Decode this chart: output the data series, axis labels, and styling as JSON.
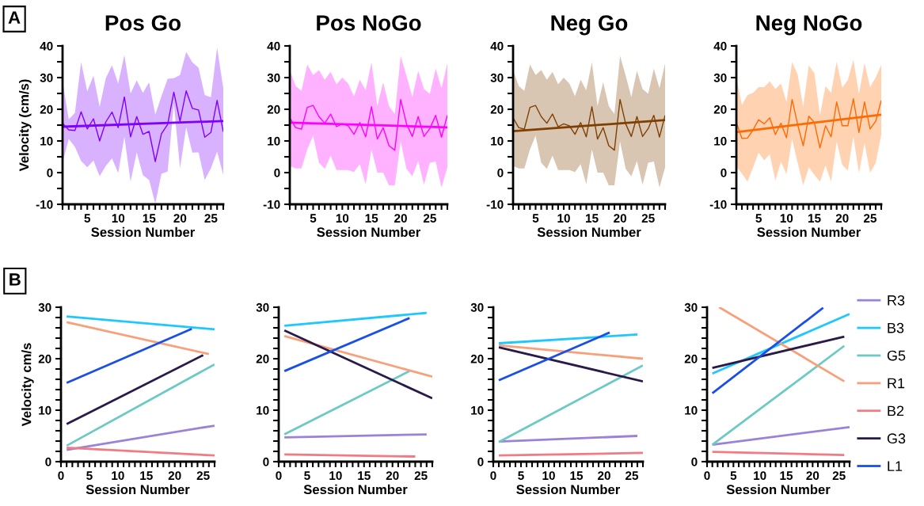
{
  "chart_data": [
    {
      "type": "line",
      "title": "Pos Go",
      "xlabel": "Session Number",
      "ylabel": "Velocity (cm/s)",
      "annotations": [
        "A"
      ],
      "x": [
        1,
        2,
        3,
        4,
        5,
        6,
        7,
        8,
        9,
        10,
        11,
        12,
        13,
        14,
        15,
        16,
        17,
        18,
        19,
        20,
        21,
        22,
        23,
        24,
        25,
        26,
        27
      ],
      "series": [
        {
          "color": "#8000ff",
          "values": [
            15.6,
            13.5,
            13.3,
            19.2,
            13.8,
            17.0,
            10.0,
            16.0,
            19.1,
            14.2,
            23.9,
            11.3,
            17.7,
            12.1,
            13.0,
            3.5,
            12.3,
            15.2,
            25.4,
            16.2,
            25.8,
            20.3,
            19.8,
            11.2,
            12.7,
            22.8,
            12.9
          ],
          "lower": [
            3.1,
            10.6,
            8.1,
            3.7,
            1.7,
            3.8,
            -1.1,
            2.1,
            4.5,
            -0.1,
            11.3,
            -2.8,
            6.4,
            -0.8,
            -2.3,
            -9.8,
            -0.4,
            0.4,
            21.8,
            1.4,
            14.3,
            6.3,
            6.4,
            -2.3,
            1.4,
            6.6,
            -0.7
          ],
          "upper": [
            28.9,
            16.8,
            18.9,
            34.9,
            25.6,
            30.6,
            20.8,
            29.8,
            33.9,
            28.1,
            37.1,
            25.0,
            29.1,
            25.2,
            28.5,
            18.3,
            24.1,
            29.6,
            29.8,
            30.8,
            38.1,
            34.8,
            33.1,
            24.5,
            23.8,
            39.5,
            26.6
          ]
        },
        {
          "color": "#8000ff",
          "x": [
            1,
            27
          ],
          "values": [
            14.5,
            16.3
          ]
        }
      ],
      "xlim": [
        1,
        27
      ],
      "xticks": [
        {
          "value": 1,
          "label": null
        },
        {
          "value": 2,
          "label": null
        },
        {
          "value": 3,
          "label": null
        },
        {
          "value": 4,
          "label": null
        },
        5,
        {
          "value": 6,
          "label": null
        },
        {
          "value": 7,
          "label": null
        },
        {
          "value": 8,
          "label": null
        },
        {
          "value": 9,
          "label": null
        },
        10,
        {
          "value": 11,
          "label": null
        },
        {
          "value": 12,
          "label": null
        },
        {
          "value": 13,
          "label": null
        },
        {
          "value": 14,
          "label": null
        },
        15,
        {
          "value": 16,
          "label": null
        },
        {
          "value": 17,
          "label": null
        },
        {
          "value": 18,
          "label": null
        },
        {
          "value": 19,
          "label": null
        },
        20,
        {
          "value": 21,
          "label": null
        },
        {
          "value": 22,
          "label": null
        },
        {
          "value": 23,
          "label": null
        },
        {
          "value": 24,
          "label": null
        },
        25,
        {
          "value": 26,
          "label": null
        },
        {
          "value": 27,
          "label": null
        }
      ],
      "ylim": [
        -10,
        40
      ],
      "yticks": [
        -10,
        {
          "value": -5,
          "label": null
        },
        0,
        {
          "value": 5,
          "label": null
        },
        10,
        {
          "value": 15,
          "label": null
        },
        20,
        {
          "value": 25,
          "label": null
        },
        30,
        {
          "value": 35,
          "label": null
        },
        40
      ]
    },
    {
      "type": "line",
      "title": "Pos NoGo",
      "xlabel": "Session Number",
      "x": [
        1,
        2,
        3,
        4,
        5,
        6,
        7,
        8,
        9,
        10,
        11,
        12,
        13,
        14,
        15,
        16,
        17,
        18,
        19,
        20,
        21,
        22,
        23,
        24,
        25,
        26,
        27,
        28
      ],
      "series": [
        {
          "color": "#ff00ff",
          "values": [
            17.3,
            14.2,
            13.7,
            20.6,
            21.2,
            17.7,
            15.6,
            18.5,
            14.5,
            15.4,
            14.8,
            12.1,
            15.8,
            11.3,
            20.8,
            10.6,
            14.2,
            8.5,
            7.1,
            23.1,
            15.4,
            11.4,
            17.7,
            11.4,
            13.9,
            18.1,
            11.2,
            18.1
          ],
          "lower": [
            2.1,
            1.3,
            1.3,
            7.3,
            11.7,
            3.1,
            1.2,
            5.4,
            0.8,
            0.8,
            0.8,
            0.2,
            2.7,
            -3.6,
            7.3,
            0.0,
            0.0,
            -4.0,
            -4.0,
            9.8,
            1.2,
            -1.1,
            3.7,
            -3.8,
            3.1,
            3.5,
            -4.7,
            1.6
          ],
          "upper": [
            32.3,
            27.4,
            25.8,
            34.1,
            30.8,
            32.4,
            29.3,
            31.8,
            27.9,
            30.0,
            28.1,
            24.1,
            29.3,
            26.0,
            34.8,
            21.0,
            28.5,
            21.0,
            18.5,
            36.8,
            30.6,
            23.9,
            32.1,
            26.4,
            24.9,
            32.8,
            26.6,
            34.5
          ]
        },
        {
          "color": "#ff00ff",
          "x": [
            1,
            28
          ],
          "values": [
            15.8,
            14.3
          ]
        }
      ],
      "xlim": [
        1,
        28
      ],
      "xticks": [
        {
          "value": 1,
          "label": null
        },
        {
          "value": 2,
          "label": null
        },
        {
          "value": 3,
          "label": null
        },
        {
          "value": 4,
          "label": null
        },
        5,
        {
          "value": 6,
          "label": null
        },
        {
          "value": 7,
          "label": null
        },
        {
          "value": 8,
          "label": null
        },
        {
          "value": 9,
          "label": null
        },
        10,
        {
          "value": 11,
          "label": null
        },
        {
          "value": 12,
          "label": null
        },
        {
          "value": 13,
          "label": null
        },
        {
          "value": 14,
          "label": null
        },
        15,
        {
          "value": 16,
          "label": null
        },
        {
          "value": 17,
          "label": null
        },
        {
          "value": 18,
          "label": null
        },
        {
          "value": 19,
          "label": null
        },
        20,
        {
          "value": 21,
          "label": null
        },
        {
          "value": 22,
          "label": null
        },
        {
          "value": 23,
          "label": null
        },
        {
          "value": 24,
          "label": null
        },
        25,
        {
          "value": 26,
          "label": null
        },
        {
          "value": 27,
          "label": null
        },
        {
          "value": 28,
          "label": null
        }
      ],
      "ylim": [
        -10,
        40
      ],
      "yticks": [
        -10,
        {
          "value": -5,
          "label": null
        },
        0,
        {
          "value": 5,
          "label": null
        },
        10,
        {
          "value": 15,
          "label": null
        },
        20,
        {
          "value": 25,
          "label": null
        },
        30,
        {
          "value": 35,
          "label": null
        },
        40
      ]
    },
    {
      "type": "line",
      "title": "Neg Go",
      "xlabel": "Session Number",
      "x": [
        1,
        2,
        3,
        4,
        5,
        6,
        7,
        8,
        9,
        10,
        11,
        12,
        13,
        14,
        15,
        16,
        17,
        18,
        19,
        20,
        21,
        22,
        23,
        24,
        25,
        26,
        27,
        28
      ],
      "series": [
        {
          "color": "#7f3f00",
          "values": [
            17.3,
            14.2,
            13.7,
            20.6,
            21.2,
            17.7,
            15.6,
            18.5,
            14.5,
            15.4,
            14.8,
            12.1,
            15.8,
            11.3,
            20.8,
            10.6,
            14.2,
            8.5,
            7.1,
            23.1,
            15.4,
            11.4,
            17.7,
            11.4,
            13.9,
            18.1,
            11.2,
            18.1
          ],
          "lower": [
            2.1,
            1.3,
            1.3,
            7.3,
            11.7,
            3.1,
            1.2,
            5.4,
            0.8,
            0.8,
            0.8,
            0.2,
            2.7,
            -3.6,
            7.3,
            0.0,
            0.0,
            -4.0,
            -4.0,
            9.8,
            1.2,
            -1.1,
            3.7,
            -3.8,
            3.1,
            3.5,
            -4.7,
            1.6
          ],
          "upper": [
            32.3,
            27.4,
            25.8,
            34.1,
            30.8,
            32.4,
            29.3,
            31.8,
            27.9,
            30.0,
            28.1,
            24.1,
            29.3,
            26.0,
            34.8,
            21.0,
            28.5,
            21.0,
            18.5,
            36.8,
            30.6,
            23.9,
            32.1,
            26.4,
            24.9,
            32.8,
            26.6,
            34.5
          ]
        },
        {
          "color": "#7f3f00",
          "x": [
            1,
            28
          ],
          "values": [
            13.1,
            16.6
          ]
        }
      ],
      "xlim": [
        1,
        28
      ],
      "xticks": [
        {
          "value": 1,
          "label": null
        },
        {
          "value": 2,
          "label": null
        },
        {
          "value": 3,
          "label": null
        },
        {
          "value": 4,
          "label": null
        },
        5,
        {
          "value": 6,
          "label": null
        },
        {
          "value": 7,
          "label": null
        },
        {
          "value": 8,
          "label": null
        },
        {
          "value": 9,
          "label": null
        },
        10,
        {
          "value": 11,
          "label": null
        },
        {
          "value": 12,
          "label": null
        },
        {
          "value": 13,
          "label": null
        },
        {
          "value": 14,
          "label": null
        },
        15,
        {
          "value": 16,
          "label": null
        },
        {
          "value": 17,
          "label": null
        },
        {
          "value": 18,
          "label": null
        },
        {
          "value": 19,
          "label": null
        },
        20,
        {
          "value": 21,
          "label": null
        },
        {
          "value": 22,
          "label": null
        },
        {
          "value": 23,
          "label": null
        },
        {
          "value": 24,
          "label": null
        },
        25,
        {
          "value": 26,
          "label": null
        },
        {
          "value": 27,
          "label": null
        },
        {
          "value": 28,
          "label": null
        }
      ],
      "ylim": [
        -10,
        40
      ],
      "yticks": [
        -10,
        {
          "value": -5,
          "label": null
        },
        0,
        {
          "value": 5,
          "label": null
        },
        10,
        {
          "value": 15,
          "label": null
        },
        20,
        {
          "value": 25,
          "label": null
        },
        30,
        {
          "value": 35,
          "label": null
        },
        40
      ]
    },
    {
      "type": "line",
      "title": "Neg NoGo",
      "xlabel": "Session Number",
      "x": [
        1,
        2,
        3,
        4,
        5,
        6,
        7,
        8,
        9,
        10,
        11,
        12,
        13,
        14,
        15,
        16,
        17,
        18,
        19,
        20,
        21,
        22,
        23,
        24,
        25,
        26,
        27
      ],
      "series": [
        {
          "color": "#ff6a00",
          "values": [
            15.8,
            10.8,
            10.9,
            13.5,
            16.7,
            15.4,
            17.3,
            12.0,
            15.6,
            11.0,
            23.1,
            15.2,
            8.5,
            17.8,
            15.8,
            7.8,
            14.8,
            11.3,
            22.3,
            14.8,
            14.8,
            23.3,
            12.7,
            22.3,
            13.8,
            16.2,
            22.8
          ],
          "lower": [
            2.0,
            -0.3,
            -2.8,
            1.6,
            6.3,
            3.9,
            5.8,
            -2.5,
            3.5,
            -0.5,
            10.6,
            3.1,
            -4.0,
            1.7,
            -0.7,
            -2.9,
            2.3,
            -2.8,
            9.8,
            2.5,
            0.6,
            11.3,
            -0.1,
            9.3,
            0.0,
            3.0,
            12.0
          ],
          "upper": [
            29.9,
            21.4,
            24.5,
            25.2,
            27.0,
            27.0,
            28.8,
            26.4,
            28.1,
            22.3,
            34.9,
            31.0,
            20.8,
            33.9,
            31.4,
            18.1,
            27.3,
            25.2,
            35.0,
            26.8,
            29.2,
            35.6,
            24.8,
            34.6,
            27.0,
            30.0,
            34.0
          ]
        },
        {
          "color": "#ff6a00",
          "x": [
            1,
            27
          ],
          "values": [
            12.8,
            18.3
          ]
        }
      ],
      "xlim": [
        1,
        27
      ],
      "xticks": [
        {
          "value": 1,
          "label": null
        },
        {
          "value": 2,
          "label": null
        },
        {
          "value": 3,
          "label": null
        },
        {
          "value": 4,
          "label": null
        },
        5,
        {
          "value": 6,
          "label": null
        },
        {
          "value": 7,
          "label": null
        },
        {
          "value": 8,
          "label": null
        },
        {
          "value": 9,
          "label": null
        },
        10,
        {
          "value": 11,
          "label": null
        },
        {
          "value": 12,
          "label": null
        },
        {
          "value": 13,
          "label": null
        },
        {
          "value": 14,
          "label": null
        },
        15,
        {
          "value": 16,
          "label": null
        },
        {
          "value": 17,
          "label": null
        },
        {
          "value": 18,
          "label": null
        },
        {
          "value": 19,
          "label": null
        },
        20,
        {
          "value": 21,
          "label": null
        },
        {
          "value": 22,
          "label": null
        },
        {
          "value": 23,
          "label": null
        },
        {
          "value": 24,
          "label": null
        },
        25,
        {
          "value": 26,
          "label": null
        },
        {
          "value": 27,
          "label": null
        }
      ],
      "ylim": [
        -10,
        40
      ],
      "yticks": [
        -10,
        {
          "value": -5,
          "label": null
        },
        0,
        {
          "value": 5,
          "label": null
        },
        10,
        {
          "value": 15,
          "label": null
        },
        20,
        {
          "value": 25,
          "label": null
        },
        30,
        {
          "value": 35,
          "label": null
        },
        40
      ]
    },
    {
      "type": "line",
      "xlabel": "Session Number",
      "ylabel": "Velocity cm/s",
      "annotations": [
        "B"
      ],
      "series": [
        {
          "color": "#9b82d8",
          "x": [
            1,
            27
          ],
          "values": [
            2.3,
            7.0
          ]
        },
        {
          "color": "#1ec8ff",
          "x": [
            1,
            27
          ],
          "values": [
            28.2,
            25.7
          ]
        },
        {
          "color": "#6cc9c4",
          "x": [
            1,
            27
          ],
          "values": [
            3.1,
            18.9
          ]
        },
        {
          "color": "#f8a07a",
          "x": [
            1,
            26
          ],
          "values": [
            27.1,
            20.9
          ]
        },
        {
          "color": "#f27a82",
          "x": [
            1,
            27
          ],
          "values": [
            2.7,
            1.2
          ]
        },
        {
          "color": "#2a1a4a",
          "x": [
            1,
            25
          ],
          "values": [
            7.3,
            20.7
          ]
        },
        {
          "color": "#1a4fe6",
          "x": [
            1,
            23
          ],
          "values": [
            15.3,
            25.8
          ]
        }
      ],
      "xlim": [
        0,
        27
      ],
      "xticks": [
        0,
        {
          "value": 1,
          "label": null
        },
        {
          "value": 2,
          "label": null
        },
        {
          "value": 3,
          "label": null
        },
        {
          "value": 4,
          "label": null
        },
        5,
        {
          "value": 6,
          "label": null
        },
        {
          "value": 7,
          "label": null
        },
        {
          "value": 8,
          "label": null
        },
        {
          "value": 9,
          "label": null
        },
        10,
        {
          "value": 11,
          "label": null
        },
        {
          "value": 12,
          "label": null
        },
        {
          "value": 13,
          "label": null
        },
        {
          "value": 14,
          "label": null
        },
        15,
        {
          "value": 16,
          "label": null
        },
        {
          "value": 17,
          "label": null
        },
        {
          "value": 18,
          "label": null
        },
        {
          "value": 19,
          "label": null
        },
        20,
        {
          "value": 21,
          "label": null
        },
        {
          "value": 22,
          "label": null
        },
        {
          "value": 23,
          "label": null
        },
        {
          "value": 24,
          "label": null
        },
        25,
        {
          "value": 26,
          "label": null
        },
        {
          "value": 27,
          "label": null
        }
      ],
      "ylim": [
        0,
        30
      ],
      "yticks": [
        0,
        {
          "value": 2,
          "label": null
        },
        {
          "value": 4,
          "label": null
        },
        {
          "value": 6,
          "label": null
        },
        {
          "value": 8,
          "label": null
        },
        10,
        {
          "value": 12,
          "label": null
        },
        {
          "value": 14,
          "label": null
        },
        {
          "value": 16,
          "label": null
        },
        {
          "value": 18,
          "label": null
        },
        20,
        {
          "value": 22,
          "label": null
        },
        {
          "value": 24,
          "label": null
        },
        {
          "value": 26,
          "label": null
        },
        {
          "value": 28,
          "label": null
        },
        30
      ]
    },
    {
      "type": "line",
      "xlabel": "Session Number",
      "series": [
        {
          "color": "#9b82d8",
          "x": [
            1,
            26
          ],
          "values": [
            4.7,
            5.3
          ]
        },
        {
          "color": "#1ec8ff",
          "x": [
            1,
            26
          ],
          "values": [
            26.4,
            28.9
          ]
        },
        {
          "color": "#6cc9c4",
          "x": [
            1,
            23
          ],
          "values": [
            5.3,
            17.6
          ]
        },
        {
          "color": "#f8a07a",
          "x": [
            1,
            27
          ],
          "values": [
            24.4,
            16.5
          ]
        },
        {
          "color": "#f27a82",
          "x": [
            1,
            24
          ],
          "values": [
            1.4,
            1.0
          ]
        },
        {
          "color": "#2a1a4a",
          "x": [
            1,
            27
          ],
          "values": [
            25.5,
            12.3
          ]
        },
        {
          "color": "#1a4fe6",
          "x": [
            1,
            23
          ],
          "values": [
            17.6,
            27.9
          ]
        }
      ],
      "xlim": [
        0,
        27
      ],
      "xticks": [
        0,
        {
          "value": 1,
          "label": null
        },
        {
          "value": 2,
          "label": null
        },
        {
          "value": 3,
          "label": null
        },
        {
          "value": 4,
          "label": null
        },
        5,
        {
          "value": 6,
          "label": null
        },
        {
          "value": 7,
          "label": null
        },
        {
          "value": 8,
          "label": null
        },
        {
          "value": 9,
          "label": null
        },
        10,
        {
          "value": 11,
          "label": null
        },
        {
          "value": 12,
          "label": null
        },
        {
          "value": 13,
          "label": null
        },
        {
          "value": 14,
          "label": null
        },
        15,
        {
          "value": 16,
          "label": null
        },
        {
          "value": 17,
          "label": null
        },
        {
          "value": 18,
          "label": null
        },
        {
          "value": 19,
          "label": null
        },
        20,
        {
          "value": 21,
          "label": null
        },
        {
          "value": 22,
          "label": null
        },
        {
          "value": 23,
          "label": null
        },
        {
          "value": 24,
          "label": null
        },
        25,
        {
          "value": 26,
          "label": null
        },
        {
          "value": 27,
          "label": null
        }
      ],
      "ylim": [
        0,
        30
      ],
      "yticks": [
        0,
        {
          "value": 2,
          "label": null
        },
        {
          "value": 4,
          "label": null
        },
        {
          "value": 6,
          "label": null
        },
        {
          "value": 8,
          "label": null
        },
        10,
        {
          "value": 12,
          "label": null
        },
        {
          "value": 14,
          "label": null
        },
        {
          "value": 16,
          "label": null
        },
        {
          "value": 18,
          "label": null
        },
        20,
        {
          "value": 22,
          "label": null
        },
        {
          "value": 24,
          "label": null
        },
        {
          "value": 26,
          "label": null
        },
        {
          "value": 28,
          "label": null
        },
        30
      ]
    },
    {
      "type": "line",
      "xlabel": "Session Number",
      "series": [
        {
          "color": "#9b82d8",
          "x": [
            1,
            26
          ],
          "values": [
            3.9,
            5.0
          ]
        },
        {
          "color": "#1ec8ff",
          "x": [
            1,
            26
          ],
          "values": [
            23.0,
            24.7
          ]
        },
        {
          "color": "#6cc9c4",
          "x": [
            1,
            27
          ],
          "values": [
            3.8,
            18.7
          ]
        },
        {
          "color": "#f8a07a",
          "x": [
            1,
            27
          ],
          "values": [
            22.6,
            20.0
          ]
        },
        {
          "color": "#f27a82",
          "x": [
            1,
            27
          ],
          "values": [
            1.2,
            1.7
          ]
        },
        {
          "color": "#2a1a4a",
          "x": [
            1,
            27
          ],
          "values": [
            22.2,
            15.6
          ]
        },
        {
          "color": "#1a4fe6",
          "x": [
            1,
            21
          ],
          "values": [
            15.8,
            25.1
          ]
        }
      ],
      "xlim": [
        0,
        27
      ],
      "xticks": [
        0,
        {
          "value": 1,
          "label": null
        },
        {
          "value": 2,
          "label": null
        },
        {
          "value": 3,
          "label": null
        },
        {
          "value": 4,
          "label": null
        },
        5,
        {
          "value": 6,
          "label": null
        },
        {
          "value": 7,
          "label": null
        },
        {
          "value": 8,
          "label": null
        },
        {
          "value": 9,
          "label": null
        },
        10,
        {
          "value": 11,
          "label": null
        },
        {
          "value": 12,
          "label": null
        },
        {
          "value": 13,
          "label": null
        },
        {
          "value": 14,
          "label": null
        },
        15,
        {
          "value": 16,
          "label": null
        },
        {
          "value": 17,
          "label": null
        },
        {
          "value": 18,
          "label": null
        },
        {
          "value": 19,
          "label": null
        },
        20,
        {
          "value": 21,
          "label": null
        },
        {
          "value": 22,
          "label": null
        },
        {
          "value": 23,
          "label": null
        },
        {
          "value": 24,
          "label": null
        },
        25,
        {
          "value": 26,
          "label": null
        },
        {
          "value": 27,
          "label": null
        }
      ],
      "ylim": [
        0,
        30
      ],
      "yticks": [
        0,
        {
          "value": 2,
          "label": null
        },
        {
          "value": 4,
          "label": null
        },
        {
          "value": 6,
          "label": null
        },
        {
          "value": 8,
          "label": null
        },
        10,
        {
          "value": 12,
          "label": null
        },
        {
          "value": 14,
          "label": null
        },
        {
          "value": 16,
          "label": null
        },
        {
          "value": 18,
          "label": null
        },
        20,
        {
          "value": 22,
          "label": null
        },
        {
          "value": 24,
          "label": null
        },
        {
          "value": 26,
          "label": null
        },
        {
          "value": 28,
          "label": null
        },
        30
      ]
    },
    {
      "type": "line",
      "xlabel": "Session Number",
      "legend": "right",
      "series": [
        {
          "name": "R3",
          "color": "#9b82d8",
          "x": [
            1,
            27
          ],
          "values": [
            3.3,
            6.7
          ]
        },
        {
          "name": "B3",
          "color": "#1ec8ff",
          "x": [
            1,
            27
          ],
          "values": [
            17.1,
            28.7
          ]
        },
        {
          "name": "G5",
          "color": "#6cc9c4",
          "x": [
            1,
            26
          ],
          "values": [
            3.3,
            22.5
          ]
        },
        {
          "name": "R1",
          "color": "#f8a07a",
          "x": [
            2.3,
            26
          ],
          "values": [
            30.0,
            15.6
          ]
        },
        {
          "name": "B2",
          "color": "#f27a82",
          "x": [
            1,
            26
          ],
          "values": [
            1.9,
            1.3
          ]
        },
        {
          "name": "G3",
          "color": "#2a1a4a",
          "x": [
            1,
            26
          ],
          "values": [
            18.2,
            24.3
          ]
        },
        {
          "name": "L1",
          "color": "#1a4fe6",
          "x": [
            1,
            22
          ],
          "values": [
            13.3,
            29.9
          ]
        }
      ],
      "xlim": [
        0,
        27
      ],
      "xticks": [
        0,
        {
          "value": 1,
          "label": null
        },
        {
          "value": 2,
          "label": null
        },
        {
          "value": 3,
          "label": null
        },
        {
          "value": 4,
          "label": null
        },
        5,
        {
          "value": 6,
          "label": null
        },
        {
          "value": 7,
          "label": null
        },
        {
          "value": 8,
          "label": null
        },
        {
          "value": 9,
          "label": null
        },
        10,
        {
          "value": 11,
          "label": null
        },
        {
          "value": 12,
          "label": null
        },
        {
          "value": 13,
          "label": null
        },
        {
          "value": 14,
          "label": null
        },
        15,
        {
          "value": 16,
          "label": null
        },
        {
          "value": 17,
          "label": null
        },
        {
          "value": 18,
          "label": null
        },
        {
          "value": 19,
          "label": null
        },
        20,
        {
          "value": 21,
          "label": null
        },
        {
          "value": 22,
          "label": null
        },
        {
          "value": 23,
          "label": null
        },
        {
          "value": 24,
          "label": null
        },
        25,
        {
          "value": 26,
          "label": null
        },
        {
          "value": 27,
          "label": null
        }
      ],
      "ylim": [
        0,
        30
      ],
      "yticks": [
        0,
        {
          "value": 2,
          "label": null
        },
        {
          "value": 4,
          "label": null
        },
        {
          "value": 6,
          "label": null
        },
        {
          "value": 8,
          "label": null
        },
        10,
        {
          "value": 12,
          "label": null
        },
        {
          "value": 14,
          "label": null
        },
        {
          "value": 16,
          "label": null
        },
        {
          "value": 18,
          "label": null
        },
        20,
        {
          "value": 22,
          "label": null
        },
        {
          "value": 24,
          "label": null
        },
        {
          "value": 26,
          "label": null
        },
        {
          "value": 28,
          "label": null
        },
        30
      ]
    }
  ]
}
